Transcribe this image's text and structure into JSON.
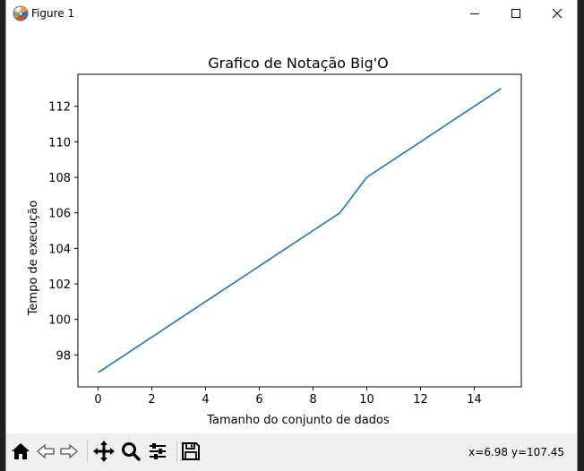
{
  "window": {
    "title": "Figure 1",
    "icon": "matplotlib-figure-icon",
    "controls": [
      "minimize-icon",
      "maximize-icon",
      "close-icon"
    ]
  },
  "toolbar": {
    "tools": [
      {
        "name": "home",
        "icon": "home-icon"
      },
      {
        "name": "back",
        "icon": "arrow-left-icon"
      },
      {
        "name": "forward",
        "icon": "arrow-right-icon"
      },
      {
        "name": "pan",
        "icon": "move-icon"
      },
      {
        "name": "zoom",
        "icon": "magnifier-icon"
      },
      {
        "name": "configure",
        "icon": "sliders-icon"
      },
      {
        "name": "save",
        "icon": "floppy-disk-icon"
      }
    ],
    "coordinates": "x=6.98 y=107.45"
  },
  "chart_data": {
    "type": "line",
    "title": "Grafico de Notação Big'O",
    "xlabel": "Tamanho do conjunto de dados",
    "ylabel": "Tempo de execução",
    "xlim": [
      -0.75,
      15.75
    ],
    "ylim": [
      96.2,
      113.8
    ],
    "xticks": [
      0,
      2,
      4,
      6,
      8,
      10,
      12,
      14
    ],
    "yticks": [
      98,
      100,
      102,
      104,
      106,
      108,
      110,
      112
    ],
    "grid": false,
    "color": "#1f77b4",
    "series": [
      {
        "x": [
          0,
          1,
          2,
          3,
          4,
          5,
          6,
          7,
          8,
          9,
          10,
          11,
          12,
          13,
          14,
          15
        ],
        "values": [
          97,
          98,
          99,
          100,
          101,
          102,
          103,
          104,
          105,
          106,
          108,
          109,
          110,
          111,
          112,
          113
        ]
      }
    ]
  }
}
